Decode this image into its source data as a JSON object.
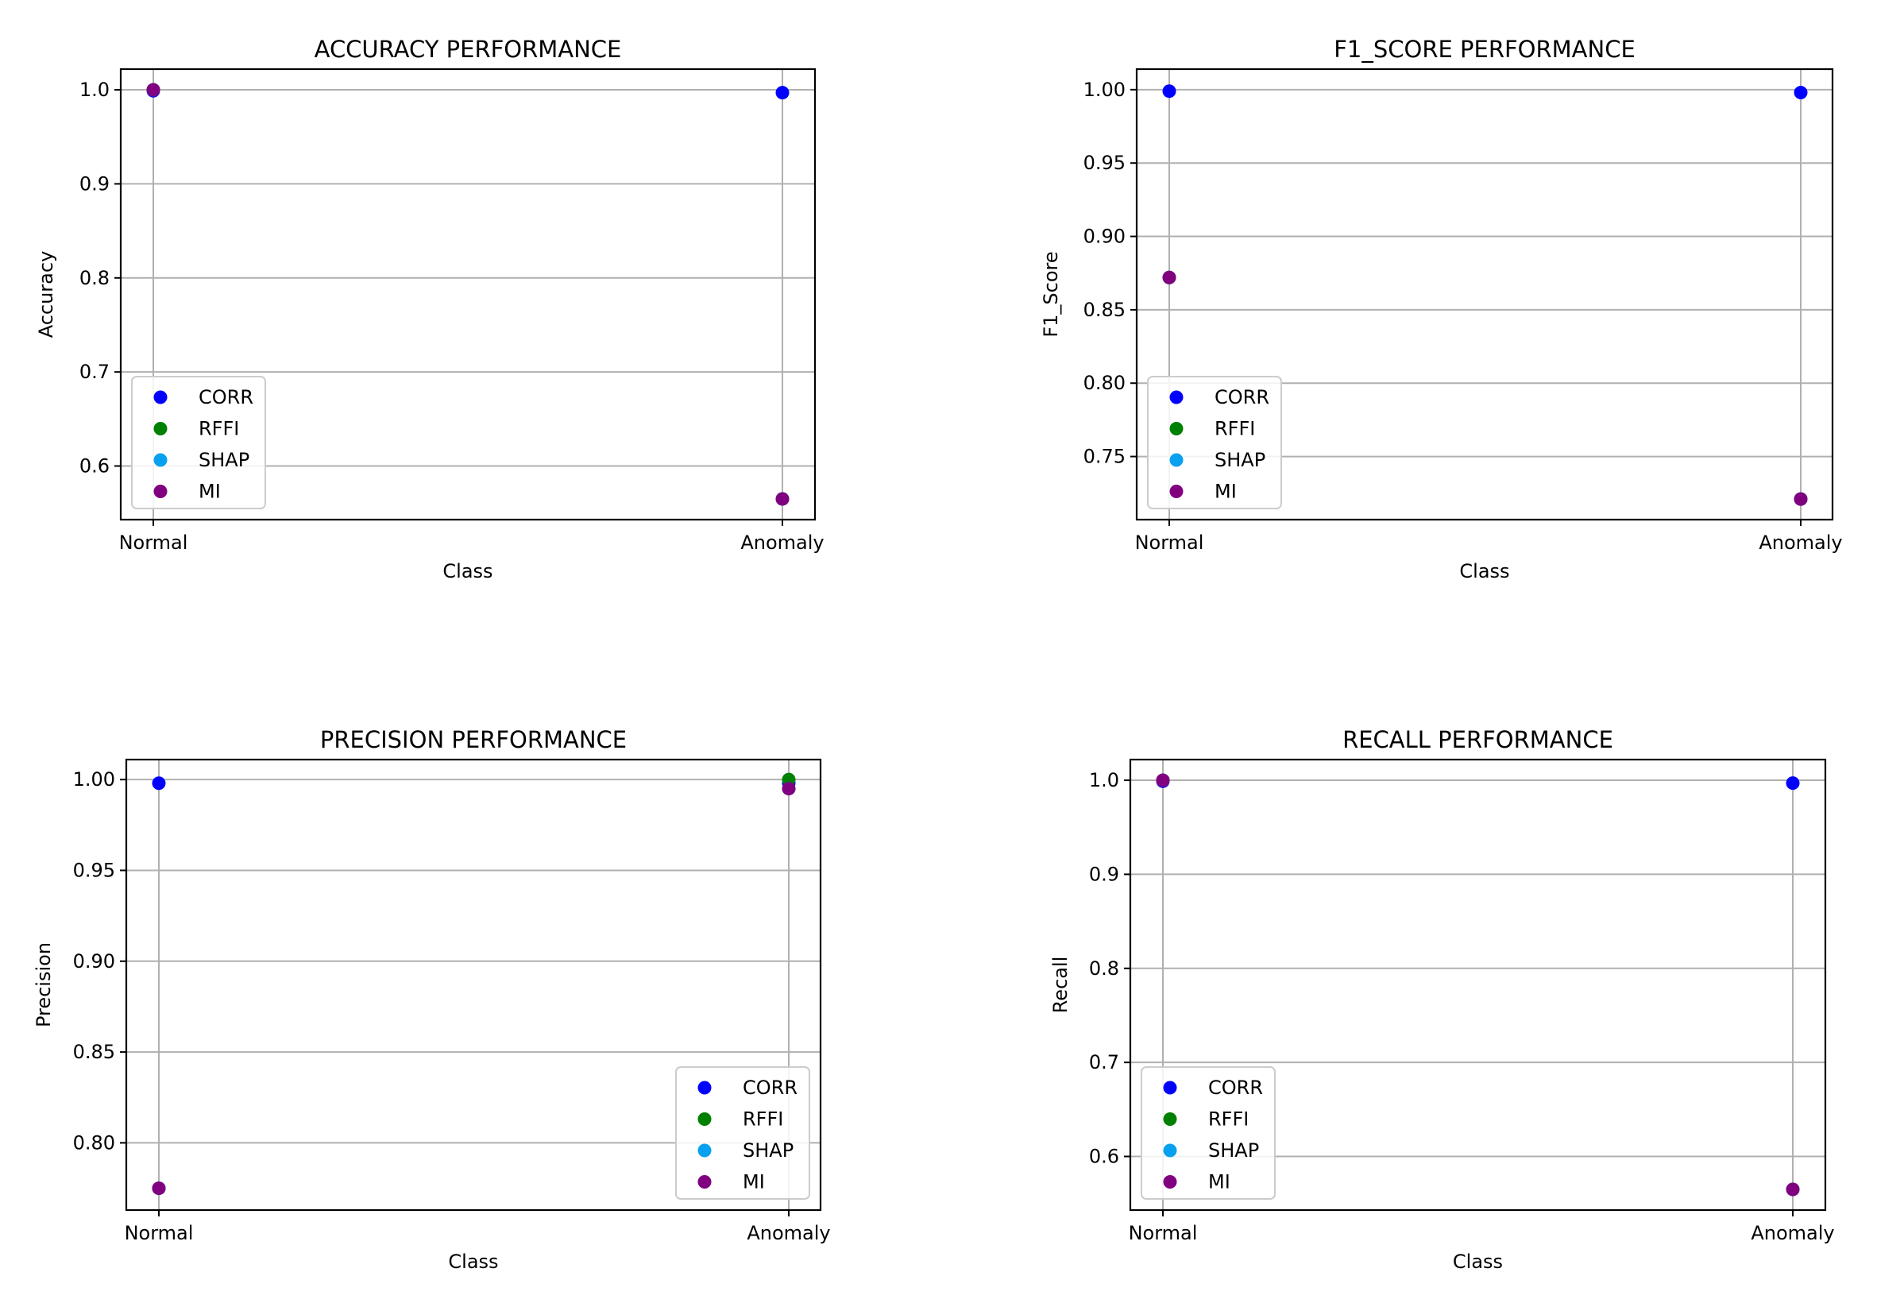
{
  "chart_data": [
    {
      "type": "scatter",
      "title": "ACCURACY PERFORMANCE",
      "xlabel": "Class",
      "ylabel": "Accuracy",
      "categories": [
        "Normal",
        "Anomaly"
      ],
      "ylim": [
        0.543,
        1.022
      ],
      "yticks": [
        "0.6",
        "0.7",
        "0.8",
        "0.9",
        "1.0"
      ],
      "ytick_values": [
        0.6,
        0.7,
        0.8,
        0.9,
        1.0
      ],
      "grid": true,
      "legend_position": "lower-left",
      "series": [
        {
          "name": "CORR",
          "color": "#0000ff",
          "values": [
            0.999,
            0.997
          ]
        },
        {
          "name": "RFFI",
          "color": "#008000",
          "values": [
            1.0,
            0.565
          ]
        },
        {
          "name": "SHAP",
          "color": "#0aa0f0",
          "values": [
            1.0,
            0.565
          ]
        },
        {
          "name": "MI",
          "color": "#800080",
          "values": [
            1.0,
            0.565
          ]
        }
      ]
    },
    {
      "type": "scatter",
      "title": "F1_SCORE PERFORMANCE",
      "xlabel": "Class",
      "ylabel": "F1_Score",
      "categories": [
        "Normal",
        "Anomaly"
      ],
      "ylim": [
        0.707,
        1.014
      ],
      "yticks": [
        "0.75",
        "0.80",
        "0.85",
        "0.90",
        "0.95",
        "1.00"
      ],
      "ytick_values": [
        0.75,
        0.8,
        0.85,
        0.9,
        0.95,
        1.0
      ],
      "grid": true,
      "legend_position": "lower-left",
      "series": [
        {
          "name": "CORR",
          "color": "#0000ff",
          "values": [
            0.999,
            0.998
          ]
        },
        {
          "name": "RFFI",
          "color": "#008000",
          "values": [
            0.872,
            0.721
          ]
        },
        {
          "name": "SHAP",
          "color": "#0aa0f0",
          "values": [
            0.872,
            0.721
          ]
        },
        {
          "name": "MI",
          "color": "#800080",
          "values": [
            0.872,
            0.721
          ]
        }
      ]
    },
    {
      "type": "scatter",
      "title": "PRECISION PERFORMANCE",
      "xlabel": "Class",
      "ylabel": "Precision",
      "categories": [
        "Normal",
        "Anomaly"
      ],
      "ylim": [
        0.763,
        1.011
      ],
      "yticks": [
        "0.80",
        "0.85",
        "0.90",
        "0.95",
        "1.00"
      ],
      "ytick_values": [
        0.8,
        0.85,
        0.9,
        0.95,
        1.0
      ],
      "grid": true,
      "legend_position": "lower-right",
      "series": [
        {
          "name": "CORR",
          "color": "#0000ff",
          "values": [
            0.998,
            0.998
          ]
        },
        {
          "name": "RFFI",
          "color": "#008000",
          "values": [
            0.775,
            1.0
          ]
        },
        {
          "name": "SHAP",
          "color": "#0aa0f0",
          "values": [
            0.775,
            0.995
          ]
        },
        {
          "name": "MI",
          "color": "#800080",
          "values": [
            0.775,
            0.995
          ]
        }
      ]
    },
    {
      "type": "scatter",
      "title": "RECALL PERFORMANCE",
      "xlabel": "Class",
      "ylabel": "Recall",
      "categories": [
        "Normal",
        "Anomaly"
      ],
      "ylim": [
        0.543,
        1.022
      ],
      "yticks": [
        "0.6",
        "0.7",
        "0.8",
        "0.9",
        "1.0"
      ],
      "ytick_values": [
        0.6,
        0.7,
        0.8,
        0.9,
        1.0
      ],
      "grid": true,
      "legend_position": "lower-left",
      "series": [
        {
          "name": "CORR",
          "color": "#0000ff",
          "values": [
            0.999,
            0.997
          ]
        },
        {
          "name": "RFFI",
          "color": "#008000",
          "values": [
            1.0,
            0.565
          ]
        },
        {
          "name": "SHAP",
          "color": "#0aa0f0",
          "values": [
            1.0,
            0.565
          ]
        },
        {
          "name": "MI",
          "color": "#800080",
          "values": [
            1.0,
            0.565
          ]
        }
      ]
    }
  ]
}
